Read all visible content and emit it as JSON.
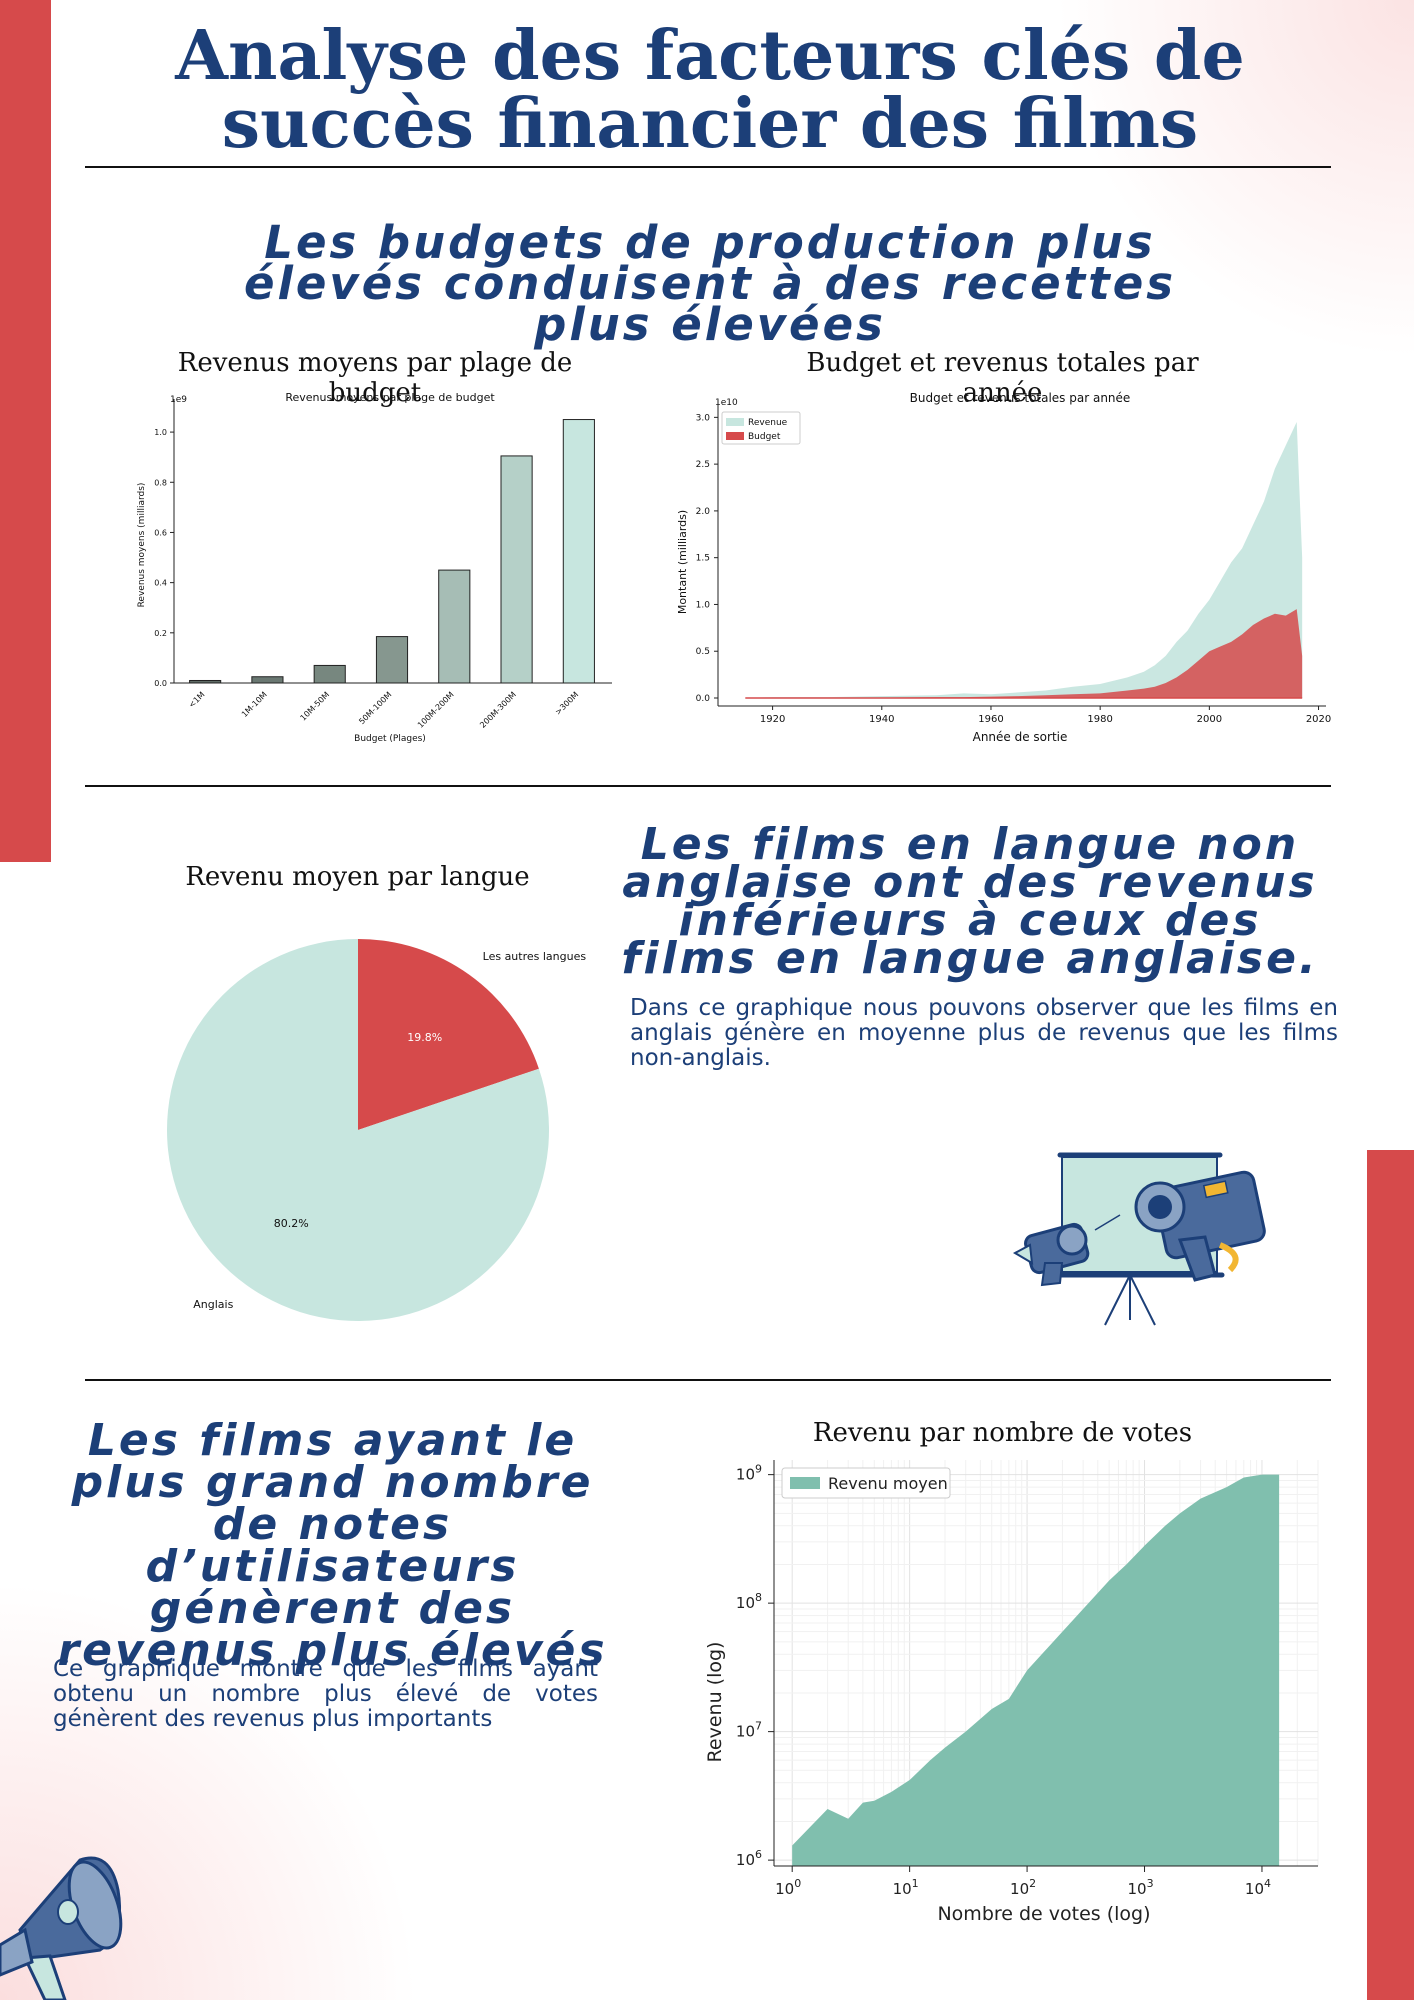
{
  "page": {
    "title": "Analyse des facteurs clés de succès financier des films",
    "section1": {
      "headline": "Les budgets de production plus élevés conduisent à des recettes plus élevées"
    },
    "section2": {
      "headline": "Les films en langue non anglaise ont des revenus inférieurs à ceux des films en langue anglaise.",
      "body": "Dans ce graphique nous pouvons observer que les films en anglais génère en moyenne plus de revenus que les films non-anglais."
    },
    "section3": {
      "headline": "Les films ayant le plus grand nombre de notes d’utilisateurs génèrent des revenus plus élevés",
      "body": "Ce graphique montre que les films ayant obtenu un nombre plus élevé de votes génèrent des revenus plus importants"
    },
    "illustrations": {
      "camera": "camera-projector-icon",
      "megaphone": "megaphone-icon"
    },
    "colors": {
      "navy": "#1c3f78",
      "red": "#d64a4b",
      "mint": "#c7e6df",
      "teal": "#80bfae"
    }
  },
  "chart_data": [
    {
      "type": "bar",
      "heading": "Revenus moyens par plage de budget",
      "title": "Revenus moyens par plage de budget",
      "xlabel": "Budget (Plages)",
      "ylabel": "Revenus moyens (milliards)",
      "offset_label": "1e9",
      "categories": [
        "<1M",
        "1M-10M",
        "10M-50M",
        "50M-100M",
        "100M-200M",
        "200M-300M",
        ">300M"
      ],
      "values": [
        0.01,
        0.025,
        0.07,
        0.185,
        0.45,
        0.905,
        1.05
      ],
      "colors": [
        "#5f6b65",
        "#6a7872",
        "#77877f",
        "#86978f",
        "#a6bdb5",
        "#b5d0c8",
        "#c7e6df"
      ],
      "ylim": [
        0,
        1.1
      ],
      "yticks": [
        "0.0",
        "0.2",
        "0.4",
        "0.6",
        "0.8",
        "1.0"
      ]
    },
    {
      "type": "area",
      "heading": "Budget et revenus totales par année",
      "title": "Budget et revenus totales par année",
      "xlabel": "Année de sortie",
      "ylabel": "Montant (milliards)",
      "offset_label": "1e10",
      "xlim": [
        1910,
        2021
      ],
      "ylim": [
        0,
        3.1
      ],
      "xticks": [
        "1920",
        "1940",
        "1960",
        "1980",
        "2000",
        "2020"
      ],
      "yticks": [
        "0.0",
        "0.5",
        "1.0",
        "1.5",
        "2.0",
        "2.5",
        "3.0"
      ],
      "legend": "top-left",
      "x": [
        1915,
        1920,
        1930,
        1940,
        1950,
        1955,
        1960,
        1965,
        1970,
        1975,
        1980,
        1985,
        1988,
        1990,
        1992,
        1994,
        1996,
        1998,
        2000,
        2002,
        2004,
        2006,
        2008,
        2010,
        2012,
        2014,
        2016,
        2017
      ],
      "series": [
        {
          "name": "Revenue",
          "color": "#c7e6df",
          "values": [
            0.0,
            0.01,
            0.01,
            0.02,
            0.03,
            0.05,
            0.04,
            0.06,
            0.08,
            0.12,
            0.15,
            0.22,
            0.28,
            0.35,
            0.45,
            0.6,
            0.72,
            0.9,
            1.05,
            1.25,
            1.45,
            1.6,
            1.85,
            2.1,
            2.45,
            2.7,
            2.95,
            1.5
          ]
        },
        {
          "name": "Budget",
          "color": "#d64a4b",
          "values": [
            0.0,
            0.0,
            0.0,
            0.005,
            0.01,
            0.01,
            0.015,
            0.02,
            0.03,
            0.04,
            0.05,
            0.08,
            0.1,
            0.12,
            0.16,
            0.22,
            0.3,
            0.4,
            0.5,
            0.55,
            0.6,
            0.68,
            0.78,
            0.85,
            0.9,
            0.88,
            0.95,
            0.45
          ]
        }
      ]
    },
    {
      "type": "pie",
      "heading": "Revenu moyen par langue",
      "labels": [
        "Les autres langues",
        "Anglais"
      ],
      "values": [
        19.8,
        80.2
      ],
      "pct_labels": [
        "19.8%",
        "80.2%"
      ],
      "colors": [
        "#d64a4b",
        "#c7e6df"
      ]
    },
    {
      "type": "area",
      "heading": "Revenu par nombre de votes",
      "xlabel": "Nombre de votes (log)",
      "ylabel": "Revenu (log)",
      "xscale": "log",
      "yscale": "log",
      "xlim": [
        0.7,
        30000
      ],
      "ylim": [
        900000,
        1300000000
      ],
      "xticks": [
        {
          "base": "10",
          "exp": "0"
        },
        {
          "base": "10",
          "exp": "1"
        },
        {
          "base": "10",
          "exp": "2"
        },
        {
          "base": "10",
          "exp": "3"
        },
        {
          "base": "10",
          "exp": "4"
        }
      ],
      "yticks": [
        {
          "base": "10",
          "exp": "6"
        },
        {
          "base": "10",
          "exp": "7"
        },
        {
          "base": "10",
          "exp": "8"
        },
        {
          "base": "10",
          "exp": "9"
        }
      ],
      "legend": "top-left",
      "grid": true,
      "series": [
        {
          "name": "Revenu moyen",
          "color": "#80bfae",
          "x": [
            1,
            2,
            3,
            4,
            5,
            7,
            10,
            15,
            20,
            30,
            50,
            70,
            100,
            150,
            200,
            300,
            500,
            700,
            1000,
            1500,
            2000,
            3000,
            5000,
            7000,
            10000,
            14000
          ],
          "values": [
            1300000,
            2500000,
            2100000,
            2800000,
            2900000,
            3400000,
            4200000,
            6000000,
            7500000,
            10000000,
            15000000,
            18000000,
            30000000,
            45000000,
            60000000,
            90000000,
            150000000,
            200000000,
            280000000,
            400000000,
            500000000,
            650000000,
            800000000,
            950000000,
            1000000000,
            1000000000
          ]
        }
      ]
    }
  ]
}
